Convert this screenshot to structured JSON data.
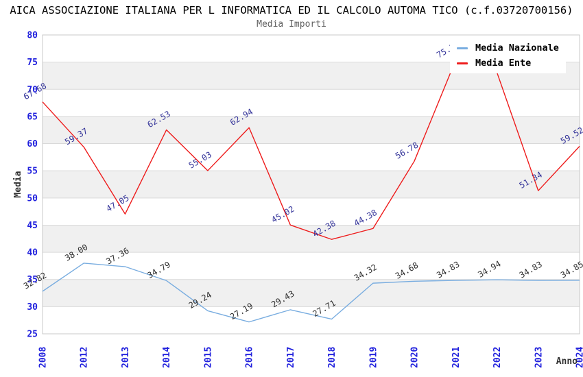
{
  "chart_data": {
    "type": "line",
    "title": "AICA ASSOCIAZIONE ITALIANA PER L INFORMATICA ED IL CALCOLO AUTOMA TICO (c.f.03720700156)",
    "subtitle": "Media Importi",
    "xlabel": "Anno",
    "ylabel": "Media",
    "ylim": [
      25,
      80
    ],
    "ytick_step": 5,
    "grid": true,
    "legend_position": "top-right",
    "categories": [
      "2008",
      "2012",
      "2013",
      "2014",
      "2015",
      "2016",
      "2017",
      "2018",
      "2019",
      "2020",
      "2021",
      "2022",
      "2023",
      "2024"
    ],
    "series": [
      {
        "name": "Media Nazionale",
        "color": "#79ade0",
        "label_color": "#2e2e2e",
        "values": [
          32.82,
          38.0,
          37.36,
          34.79,
          29.24,
          27.19,
          29.43,
          27.71,
          34.32,
          34.68,
          34.83,
          34.94,
          34.83,
          34.85
        ],
        "point_labels": [
          "32.82",
          "38.00",
          "37.36",
          "34.79",
          "29.24",
          "27.19",
          "29.43",
          "27.71",
          "34.32",
          "34.68",
          "34.83",
          "34.94",
          "34.83",
          "34.85"
        ]
      },
      {
        "name": "Media Ente",
        "color": "#ee1c1c",
        "label_color": "#333399",
        "values": [
          67.68,
          59.37,
          47.05,
          62.53,
          55.03,
          62.94,
          45.02,
          42.38,
          44.38,
          56.78,
          75.35,
          73.1,
          51.34,
          59.52
        ],
        "point_labels": [
          "67.68",
          "59.37",
          "47.05",
          "62.53",
          "55.03",
          "62.94",
          "45.02",
          "42.38",
          "44.38",
          "56.78",
          "75.35",
          null,
          "51.34",
          "59.52"
        ]
      }
    ],
    "colors": {
      "title": "#000000",
      "subtitle": "#5f5f5f",
      "tick_label": "#2020dd",
      "axis_title": "#333333",
      "band": "#f0f0f0",
      "grid": "#d9d9d9",
      "frame": "#c8c8c8",
      "plot_bg": "#ffffff",
      "legend_text": "#000000",
      "legend_bg": "#ffffff"
    }
  }
}
